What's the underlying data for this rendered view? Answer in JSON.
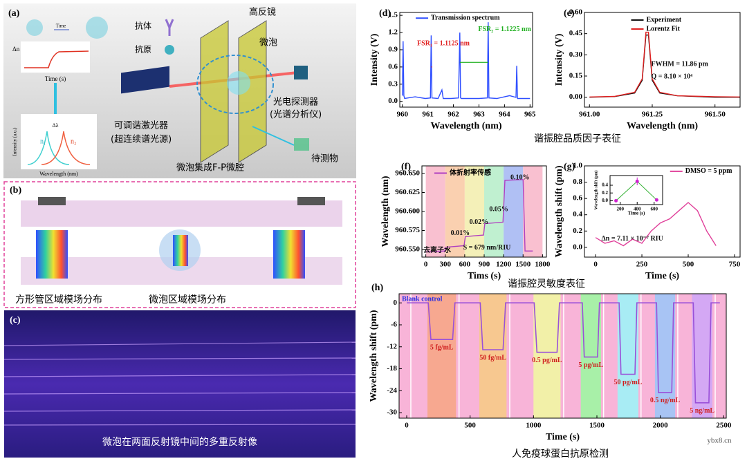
{
  "panel_a": {
    "label": "(a)",
    "time": "Time",
    "dn": "Δn",
    "time_axis": "Time (s)",
    "antibody": "抗体",
    "antigen": "抗原",
    "mirror": "高反镜",
    "bubble": "微泡",
    "detector": "光电探测器",
    "detector_sub": "(光谱分析仪)",
    "laser": "可调谐激光器",
    "laser_sub": "(超连续谱光源)",
    "analyte": "待测物",
    "cavity": "微泡集成F-P微腔",
    "intensity": "Intensity (a.u.)",
    "wavelength": "Wavelength (nm)",
    "dl": "Δλ",
    "n1": "n₁",
    "n2": "n₂"
  },
  "panel_b": {
    "label": "(b)",
    "left": "方形管区域模场分布",
    "right": "微泡区域模场分布"
  },
  "panel_c": {
    "label": "(c)",
    "caption": "微泡在两面反射镜中间的多重反射像"
  },
  "captions": [
    "谐振腔品质因子表征",
    "谐振腔灵敏度表征",
    "人免疫球蛋白抗原检测"
  ],
  "watermark": "ybx8.cn",
  "chart_data": [
    {
      "type": "line",
      "label": "(d)",
      "xlabel": "Wavelength (nm)",
      "ylabel": "Intensity (V)",
      "xlim": [
        959.9,
        965.1
      ],
      "ylim": [
        -0.1,
        1.55
      ],
      "xticks": [
        960,
        961,
        962,
        963,
        964,
        965
      ],
      "yticks": [
        {
          "value": 0,
          "label": "0.0"
        },
        0.3,
        0.6,
        0.9,
        1.2,
        1.5
      ],
      "x": [
        960,
        960.03,
        960.06,
        960.09,
        960.5,
        960.9,
        961.1,
        961.13,
        961.16,
        961.4,
        961.55,
        961.6,
        961.9,
        962.2,
        962.25,
        962.28,
        962.31,
        962.6,
        963.0,
        963.33,
        963.36,
        963.39,
        963.7,
        964.2,
        964.45,
        964.48,
        964.51,
        964.8,
        965
      ],
      "series": [
        {
          "name": "Transmission spectrum",
          "color": "#2f4fff",
          "values": [
            0.1,
            1.05,
            0.1,
            0.05,
            0.08,
            0.05,
            0.06,
            1.15,
            0.06,
            0.05,
            0.2,
            0.05,
            0.05,
            0.06,
            1.2,
            0.06,
            0.05,
            0.05,
            0.05,
            0.06,
            1.38,
            0.06,
            0.05,
            0.1,
            0.07,
            0.62,
            0.05,
            0.05,
            0.05
          ]
        }
      ],
      "annotations": [
        "FSR₁ = 1.1125 nm",
        "FSR₂ = 1.1225 nm"
      ]
    },
    {
      "type": "line",
      "label": "(e)",
      "xlabel": "Wavelength (nm)",
      "ylabel": "Intensity (V)",
      "xlim": [
        960.98,
        961.6
      ],
      "ylim": [
        -0.07,
        0.6
      ],
      "xticks": [
        {
          "value": 961,
          "label": "961.00"
        },
        961.25,
        {
          "value": 961.5,
          "label": "961.50"
        }
      ],
      "yticks": [
        {
          "value": 0,
          "label": "0.00"
        },
        0.15,
        {
          "value": 0.3,
          "label": "0.30"
        },
        0.45,
        {
          "value": 0.6,
          "label": "0.60"
        }
      ],
      "x": [
        961.0,
        961.1,
        961.18,
        961.21,
        961.225,
        961.235,
        961.25,
        961.28,
        961.35,
        961.5,
        961.6
      ],
      "series": [
        {
          "name": "Experiment",
          "color": "#111111",
          "values": [
            0.0,
            0.005,
            0.03,
            0.12,
            0.44,
            0.44,
            0.12,
            0.03,
            0.01,
            0.0,
            0.0
          ]
        },
        {
          "name": "Lorentz Fit",
          "color": "#e02020",
          "values": [
            0.002,
            0.006,
            0.035,
            0.13,
            0.46,
            0.46,
            0.13,
            0.035,
            0.01,
            0.004,
            0.002
          ]
        }
      ],
      "annotations": [
        "FWHM = 11.86 pm",
        "Q =  8.10 × 10⁴"
      ]
    },
    {
      "type": "line",
      "label": "(f)",
      "xlabel": "Tims (s)",
      "ylabel": "Wavelength (nm)",
      "xlim": [
        -60,
        1860
      ],
      "ylim": [
        960.54,
        960.66
      ],
      "xticks": [
        0,
        300,
        600,
        900,
        1200,
        1500,
        1800
      ],
      "yticks": [
        {
          "value": 960.55,
          "label": "960.550"
        },
        960.575,
        {
          "value": 960.6,
          "label": "960.600"
        },
        960.625,
        {
          "value": 960.65,
          "label": "960.650"
        }
      ],
      "x": [
        0,
        290,
        310,
        590,
        610,
        890,
        910,
        1190,
        1220,
        1500,
        1530,
        1650
      ],
      "series": [
        {
          "name": "体折射率传感",
          "color": "#b040c0",
          "values": [
            960.547,
            960.548,
            960.553,
            960.555,
            960.567,
            960.569,
            960.584,
            960.586,
            960.641,
            960.642,
            960.548,
            960.548
          ]
        }
      ],
      "annotations": [
        "去离子水",
        "0.01%",
        "0.02%",
        "0.05%",
        "0.10%",
        "S = 679 nm/RIU"
      ]
    },
    {
      "type": "line",
      "label": "(g)",
      "xlabel": "Time (s)",
      "ylabel": "Wavelength shift (pm)",
      "xlim": [
        -60,
        780
      ],
      "ylim": [
        -0.12,
        1.0
      ],
      "xticks": [
        0,
        250,
        500,
        750
      ],
      "yticks": [
        {
          "value": 0,
          "label": "0.0"
        },
        0.2,
        0.4,
        0.6,
        0.8,
        {
          "value": 1,
          "label": "1.0"
        }
      ],
      "x": [
        0,
        50,
        100,
        150,
        200,
        250,
        300,
        350,
        400,
        450,
        500,
        550,
        600,
        650
      ],
      "series": [
        {
          "name": "DMSO = 5 ppm",
          "color": "#e0409a",
          "values": [
            0.12,
            0.05,
            0.08,
            0.02,
            0.1,
            0.05,
            0.2,
            0.3,
            0.35,
            0.45,
            0.55,
            0.45,
            0.2,
            0.02
          ]
        }
      ],
      "annotations": [
        "Δn = 7.11 × 10⁻⁷ RIU"
      ]
    },
    {
      "type": "scatter",
      "xlabel": "Time (s)",
      "ylabel": "Wavelength shift (pm)",
      "xlim": [
        80,
        700
      ],
      "ylim": [
        -0.1,
        0.65
      ],
      "xticks": [
        200,
        400,
        600
      ],
      "yticks": [
        {
          "value": 0,
          "label": "0.0"
        },
        0.2,
        0.4
      ],
      "x": [
        150,
        400,
        630
      ],
      "values": [
        0.0,
        0.5,
        0.02
      ],
      "errors": [
        0.03,
        0.1,
        0.03
      ],
      "color": "#d020d0",
      "line_color": "#30b030"
    },
    {
      "type": "line",
      "label": "(h)",
      "xlabel": "Time (s)",
      "ylabel": "Wavelength shift (pm)",
      "xlim": [
        -60,
        2520
      ],
      "ylim": [
        -31.5,
        2.5
      ],
      "xticks": [
        0,
        500,
        1000,
        1500,
        2000,
        2500
      ],
      "yticks": [
        0,
        -6,
        -12,
        -18,
        -24,
        -30
      ],
      "x": [
        0,
        170,
        191,
        362,
        380,
        580,
        600,
        760,
        780,
        1005,
        1027,
        1186,
        1205,
        1385,
        1400,
        1505,
        1520,
        1675,
        1690,
        1800,
        1815,
        1970,
        1985,
        2090,
        2105,
        2260,
        2277,
        2383,
        2400,
        2470
      ],
      "values": [
        0,
        0,
        -10,
        -10,
        0,
        0,
        -12.8,
        -12.8,
        0,
        0,
        -13.5,
        -13.5,
        0,
        0,
        -14.8,
        -14.8,
        0,
        0,
        -19.5,
        -19.5,
        0,
        0,
        -24.5,
        -24.5,
        0,
        0,
        -27.3,
        -27.3,
        0,
        0
      ],
      "color": "#9a50d8",
      "annotations": [
        "Blank control",
        "5 fg/mL",
        "50 fg/mL",
        "0.5 pg/mL",
        "5 pg/mL",
        "50 pg/mL",
        "0.5 ng/mL",
        "5 ng/mL"
      ]
    }
  ]
}
